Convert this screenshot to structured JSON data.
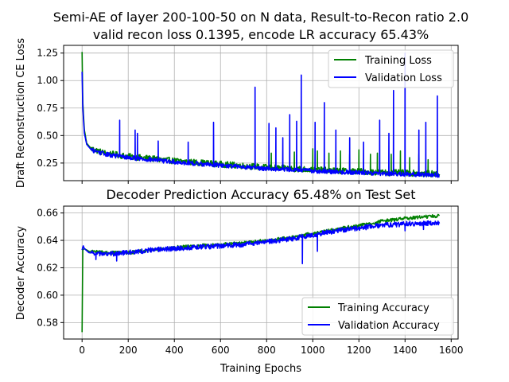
{
  "figure": {
    "title_line1": "Semi-AE of layer 200-100-50 on N data, Result-to-Recon ratio 2.0",
    "title_line2": "valid recon loss 0.1395, encode LR accuracy 65.43%"
  },
  "colors": {
    "training": "#008000",
    "validation": "#0000ff",
    "grid": "#b0b0b0",
    "axes": "#000000",
    "background": "#ffffff"
  },
  "chart_data": [
    {
      "type": "line",
      "title": "",
      "xlabel": "",
      "ylabel": "Draft Reconstruction CE Loss",
      "xlim": [
        -80,
        1630
      ],
      "ylim": [
        0.09,
        1.32
      ],
      "xticks": [
        0,
        200,
        400,
        600,
        800,
        1000,
        1200,
        1400,
        1600
      ],
      "xtick_labels_visible": false,
      "yticks": [
        0.25,
        0.5,
        0.75,
        1.0,
        1.25
      ],
      "ytick_labels": [
        "0.25",
        "0.50",
        "0.75",
        "1.00",
        "1.25"
      ],
      "grid": true,
      "legend": "top-right",
      "series": [
        {
          "name": "Training Loss",
          "color_key": "training",
          "base_points": [
            [
              0,
              1.26
            ],
            [
              3,
              0.8
            ],
            [
              10,
              0.55
            ],
            [
              20,
              0.43
            ],
            [
              40,
              0.38
            ],
            [
              100,
              0.34
            ],
            [
              200,
              0.31
            ],
            [
              300,
              0.29
            ],
            [
              400,
              0.27
            ],
            [
              500,
              0.255
            ],
            [
              600,
              0.24
            ],
            [
              700,
              0.225
            ],
            [
              800,
              0.21
            ],
            [
              900,
              0.2
            ],
            [
              1000,
              0.19
            ],
            [
              1100,
              0.18
            ],
            [
              1200,
              0.175
            ],
            [
              1300,
              0.165
            ],
            [
              1400,
              0.16
            ],
            [
              1550,
              0.15
            ]
          ],
          "noise": 0.028,
          "spikes": [
            [
              820,
              0.34
            ],
            [
              920,
              0.35
            ],
            [
              1000,
              0.38
            ],
            [
              1020,
              0.36
            ],
            [
              1070,
              0.34
            ],
            [
              1120,
              0.36
            ],
            [
              1160,
              0.33
            ],
            [
              1200,
              0.37
            ],
            [
              1250,
              0.33
            ],
            [
              1280,
              0.34
            ],
            [
              1340,
              0.33
            ],
            [
              1380,
              0.36
            ],
            [
              1420,
              0.3
            ],
            [
              1460,
              0.33
            ],
            [
              1500,
              0.28
            ],
            [
              1540,
              0.24
            ]
          ]
        },
        {
          "name": "Validation Loss",
          "color_key": "validation",
          "base_points": [
            [
              0,
              1.08
            ],
            [
              3,
              0.75
            ],
            [
              10,
              0.52
            ],
            [
              20,
              0.42
            ],
            [
              40,
              0.37
            ],
            [
              100,
              0.33
            ],
            [
              200,
              0.3
            ],
            [
              300,
              0.28
            ],
            [
              400,
              0.26
            ],
            [
              500,
              0.245
            ],
            [
              600,
              0.23
            ],
            [
              700,
              0.215
            ],
            [
              800,
              0.2
            ],
            [
              900,
              0.19
            ],
            [
              1000,
              0.18
            ],
            [
              1100,
              0.17
            ],
            [
              1200,
              0.165
            ],
            [
              1300,
              0.155
            ],
            [
              1400,
              0.15
            ],
            [
              1550,
              0.14
            ]
          ],
          "noise": 0.02,
          "spikes": [
            [
              163,
              0.64
            ],
            [
              230,
              0.55
            ],
            [
              240,
              0.52
            ],
            [
              330,
              0.45
            ],
            [
              460,
              0.44
            ],
            [
              570,
              0.62
            ],
            [
              750,
              0.94
            ],
            [
              810,
              0.61
            ],
            [
              840,
              0.57
            ],
            [
              870,
              0.48
            ],
            [
              900,
              0.69
            ],
            [
              930,
              0.63
            ],
            [
              950,
              1.05
            ],
            [
              1010,
              0.62
            ],
            [
              1050,
              0.8
            ],
            [
              1100,
              0.55
            ],
            [
              1160,
              0.48
            ],
            [
              1220,
              0.44
            ],
            [
              1290,
              0.64
            ],
            [
              1330,
              0.52
            ],
            [
              1350,
              0.91
            ],
            [
              1400,
              1.25
            ],
            [
              1460,
              0.55
            ],
            [
              1490,
              0.62
            ],
            [
              1540,
              0.86
            ]
          ]
        }
      ]
    },
    {
      "type": "line",
      "title": "Decoder Prediction Accuracy 65.48% on Test Set",
      "xlabel": "Training Epochs",
      "ylabel": "Decoder Accuracy",
      "xlim": [
        -80,
        1630
      ],
      "ylim": [
        0.568,
        0.665
      ],
      "xticks": [
        0,
        200,
        400,
        600,
        800,
        1000,
        1200,
        1400,
        1600
      ],
      "xtick_labels": [
        "0",
        "200",
        "400",
        "600",
        "800",
        "1000",
        "1200",
        "1400",
        "1600"
      ],
      "yticks": [
        0.58,
        0.6,
        0.62,
        0.64,
        0.66
      ],
      "ytick_labels": [
        "0.58",
        "0.60",
        "0.62",
        "0.64",
        "0.66"
      ],
      "grid": true,
      "legend": "bottom-right",
      "series": [
        {
          "name": "Training Accuracy",
          "color_key": "training",
          "base_points": [
            [
              0,
              0.573
            ],
            [
              3,
              0.633
            ],
            [
              10,
              0.634
            ],
            [
              30,
              0.632
            ],
            [
              100,
              0.631
            ],
            [
              200,
              0.631
            ],
            [
              300,
              0.633
            ],
            [
              400,
              0.635
            ],
            [
              500,
              0.636
            ],
            [
              600,
              0.637
            ],
            [
              700,
              0.638
            ],
            [
              800,
              0.64
            ],
            [
              900,
              0.642
            ],
            [
              1000,
              0.645
            ],
            [
              1100,
              0.648
            ],
            [
              1200,
              0.651
            ],
            [
              1300,
              0.654
            ],
            [
              1400,
              0.656
            ],
            [
              1550,
              0.658
            ]
          ],
          "noise": 0.0012,
          "spikes": []
        },
        {
          "name": "Validation Accuracy",
          "color_key": "validation",
          "base_points": [
            [
              0,
              0.633
            ],
            [
              5,
              0.636
            ],
            [
              10,
              0.634
            ],
            [
              30,
              0.631
            ],
            [
              100,
              0.63
            ],
            [
              200,
              0.631
            ],
            [
              300,
              0.633
            ],
            [
              400,
              0.634
            ],
            [
              500,
              0.635
            ],
            [
              600,
              0.636
            ],
            [
              700,
              0.637
            ],
            [
              800,
              0.639
            ],
            [
              900,
              0.641
            ],
            [
              1000,
              0.644
            ],
            [
              1100,
              0.647
            ],
            [
              1200,
              0.649
            ],
            [
              1300,
              0.651
            ],
            [
              1400,
              0.652
            ],
            [
              1550,
              0.653
            ]
          ],
          "noise": 0.0018,
          "spikes": [
            [
              60,
              0.626
            ],
            [
              150,
              0.625
            ],
            [
              955,
              0.623
            ],
            [
              1020,
              0.632
            ],
            [
              1400,
              0.647
            ],
            [
              1480,
              0.648
            ]
          ]
        }
      ]
    }
  ]
}
